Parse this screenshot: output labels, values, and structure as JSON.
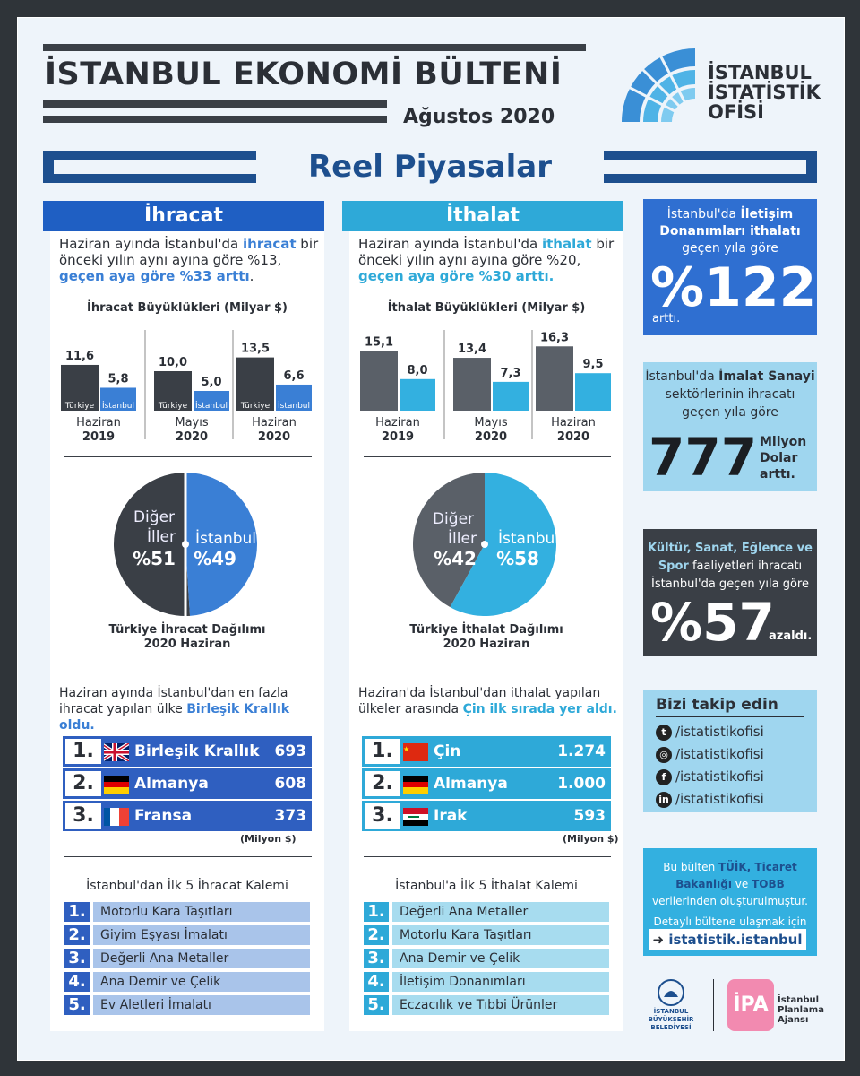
{
  "header": {
    "title": "İSTANBUL EKONOMİ BÜLTENİ",
    "date": "Ağustos 2020",
    "logo_lines": [
      "İSTANBUL",
      "İSTATİSTİK",
      "OFİSİ"
    ],
    "section_title": "Reel Piyasalar"
  },
  "colors": {
    "dark": "#3a3f46",
    "blue": "#3a7fd5",
    "cyan": "#33b0e0",
    "navy": "#1d4f8e",
    "light_blue": "#9fd6ef"
  },
  "export": {
    "tab": "İhracat",
    "intro_1": "Haziran ayında İstanbul'da ",
    "intro_hl": "ihracat",
    "intro_2": " bir önceki yılın aynı ayına göre %13,",
    "intro_3": "geçen aya göre %33 arttı",
    "intro_4": ".",
    "bar_chart": {
      "title": "İhracat Büyüklükleri (Milyar $)",
      "groups": [
        {
          "period": "Haziran",
          "year": "2019",
          "turkiye": "11,6",
          "istanbul": "5,8"
        },
        {
          "period": "Mayıs",
          "year": "2020",
          "turkiye": "10,0",
          "istanbul": "5,0"
        },
        {
          "period": "Haziran",
          "year": "2020",
          "turkiye": "13,5",
          "istanbul": "6,6"
        }
      ],
      "series_labels": [
        "Türkiye",
        "İstanbul"
      ]
    },
    "pie": {
      "other_label_1": "Diğer",
      "other_label_2": "İller",
      "other_value": "%51",
      "ist_label": "İstanbul",
      "ist_value": "%49",
      "caption_1": "Türkiye İhracat Dağılımı",
      "caption_2": "2020 Haziran"
    },
    "ranking_intro_1": "Haziran ayında İstanbul'dan en fazla",
    "ranking_intro_2": "ihracat yapılan ülke ",
    "ranking_intro_hl": "Birleşik Krallık oldu.",
    "ranking": [
      {
        "rank": "1.",
        "country": "Birleşik Krallık",
        "value": "693"
      },
      {
        "rank": "2.",
        "country": "Almanya",
        "value": "608"
      },
      {
        "rank": "3.",
        "country": "Fransa",
        "value": "373"
      }
    ],
    "unit": "(Milyon $)",
    "items_title": "İstanbul'dan İlk 5 İhracat Kalemi",
    "items": [
      {
        "n": "1.",
        "label": "Motorlu Kara Taşıtları"
      },
      {
        "n": "2.",
        "label": "Giyim Eşyası İmalatı"
      },
      {
        "n": "3.",
        "label": "Değerli Ana Metaller"
      },
      {
        "n": "4.",
        "label": "Ana Demir ve Çelik"
      },
      {
        "n": "5.",
        "label": "Ev Aletleri İmalatı"
      }
    ]
  },
  "import": {
    "tab": "İthalat",
    "intro_1": "Haziran ayında İstanbul'da ",
    "intro_hl": "ithalat",
    "intro_2": " bir önceki yılın aynı ayına göre %20,",
    "intro_3": "geçen aya göre %30 arttı.",
    "bar_chart": {
      "title": "İthalat Büyüklükleri (Milyar $)",
      "groups": [
        {
          "period": "Haziran",
          "year": "2019",
          "turkiye": "15,1",
          "istanbul": "8,0"
        },
        {
          "period": "Mayıs",
          "year": "2020",
          "turkiye": "13,4",
          "istanbul": "7,3"
        },
        {
          "period": "Haziran",
          "year": "2020",
          "turkiye": "16,3",
          "istanbul": "9,5"
        }
      ]
    },
    "pie": {
      "other_label_1": "Diğer",
      "other_label_2": "İller",
      "other_value": "%42",
      "ist_label": "İstanbul",
      "ist_value": "%58",
      "caption_1": "Türkiye İthalat Dağılımı",
      "caption_2": "2020 Haziran"
    },
    "ranking_intro_1": "Haziran'da İstanbul'dan ithalat yapılan",
    "ranking_intro_2": "ülkeler arasında ",
    "ranking_intro_hl": "Çin ilk sırada yer aldı.",
    "ranking": [
      {
        "rank": "1.",
        "country": "Çin",
        "value": "1.274"
      },
      {
        "rank": "2.",
        "country": "Almanya",
        "value": "1.000"
      },
      {
        "rank": "3.",
        "country": "Irak",
        "value": "593"
      }
    ],
    "unit": "(Milyon $)",
    "items_title": "İstanbul'a İlk 5 İthalat Kalemi",
    "items": [
      {
        "n": "1.",
        "label": "Değerli Ana Metaller"
      },
      {
        "n": "2.",
        "label": "Motorlu Kara Taşıtları"
      },
      {
        "n": "3.",
        "label": "Ana Demir ve Çelik"
      },
      {
        "n": "4.",
        "label": "İletişim Donanımları"
      },
      {
        "n": "5.",
        "label": "Eczacılık ve Tıbbi Ürünler"
      }
    ]
  },
  "side": {
    "box1_a": "İstanbul'da ",
    "box1_b": "İletişim",
    "box1_c": "Donanımları ithalatı",
    "box1_d": "geçen yıla göre",
    "box1_value": "%122",
    "box1_suffix": "arttı.",
    "box2_a": "İstanbul'da ",
    "box2_b": "İmalat Sanayi",
    "box2_c": "sektörlerinin ihracatı",
    "box2_d": "geçen yıla göre",
    "box2_value": "777",
    "box2_unit_1": "Milyon",
    "box2_unit_2": "Dolar",
    "box2_unit_3": "arttı.",
    "box3_a": "Kültür, Sanat, Eğlence ve",
    "box3_b": "Spor",
    "box3_c": " faaliyetleri ihracatı",
    "box3_d": "İstanbul'da geçen yıla göre",
    "box3_value": "%57",
    "box3_suffix": "azaldı.",
    "follow_title": "Bizi takip edin",
    "social": [
      {
        "icon": "twitter-icon",
        "glyph": "t",
        "handle": "/istatistikofisi"
      },
      {
        "icon": "instagram-icon",
        "glyph": "◎",
        "handle": "/istatistikofisi"
      },
      {
        "icon": "facebook-icon",
        "glyph": "f",
        "handle": "/istatistikofisi"
      },
      {
        "icon": "linkedin-icon",
        "glyph": "in",
        "handle": "/istatistikofisi"
      }
    ],
    "source_1": "Bu bülten ",
    "source_hl_1": "TÜİK, Ticaret",
    "source_hl_2": "Bakanlığı",
    "source_2": " ve ",
    "source_hl_3": "TOBB",
    "source_3": "verilerinden oluşturulmuştur.",
    "source_4": "Detaylı bültene ulaşmak için",
    "link": "istatistik.istanbul",
    "footer_ibb_1": "İSTANBUL",
    "footer_ibb_2": "BÜYÜKŞEHİR",
    "footer_ibb_3": "BELEDİYESİ",
    "footer_ipa_logo": "İPA",
    "footer_ipa_1": "İstanbul",
    "footer_ipa_2": "Planlama",
    "footer_ipa_3": "Ajansı"
  }
}
